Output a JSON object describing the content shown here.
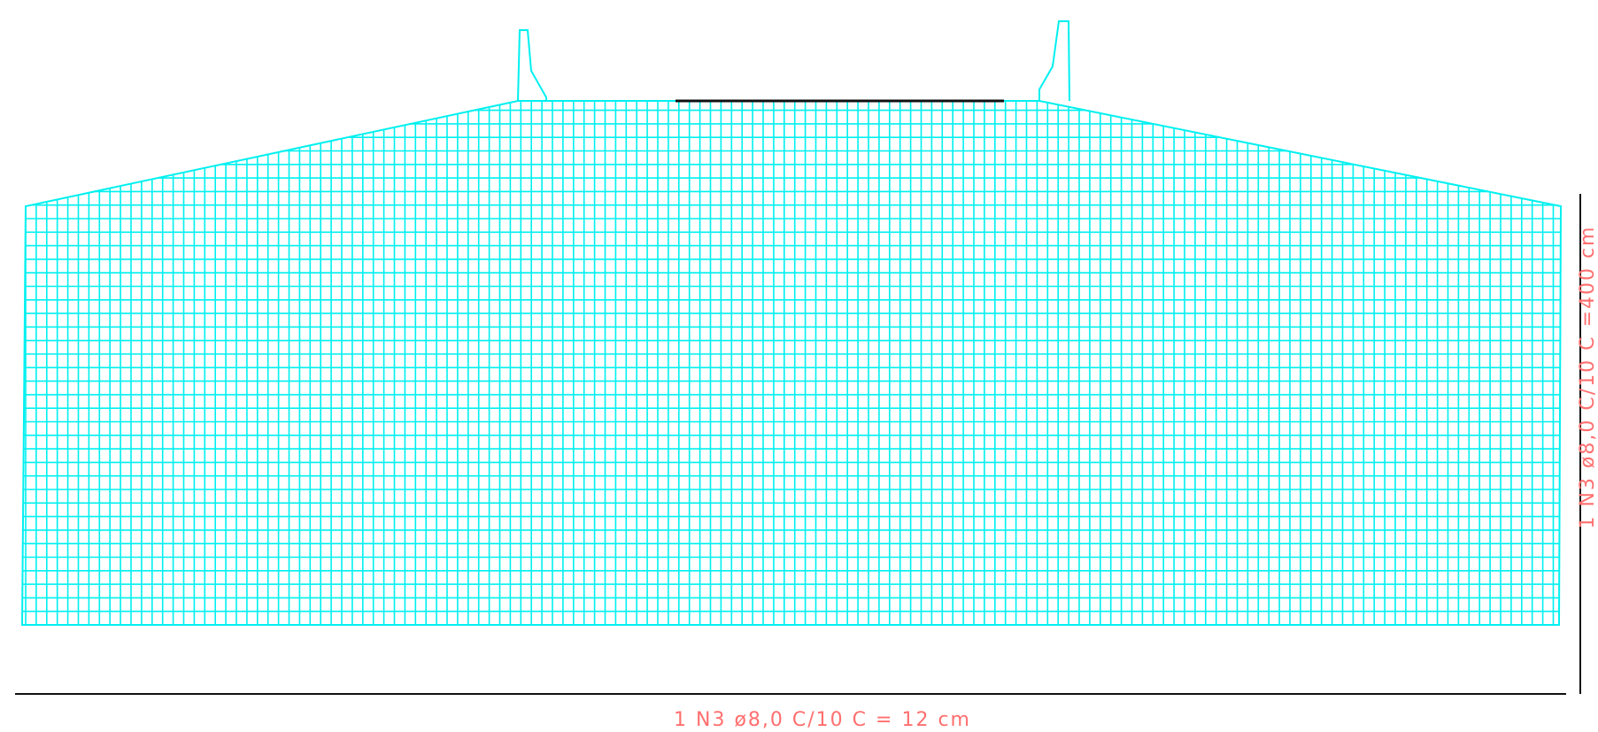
{
  "labels": {
    "bottom": "1 N3 ø8,0 C/10 C = 12 cm",
    "right": "1 N3 ø8,0 C/10 C =400 cm"
  }
}
